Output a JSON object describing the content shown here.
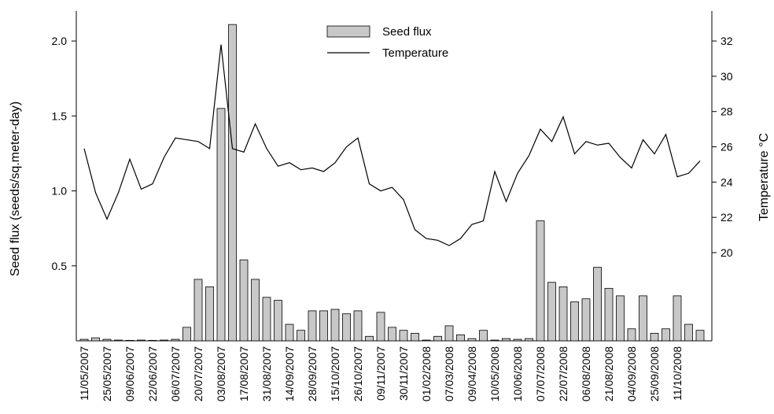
{
  "chart_data": {
    "type": "bar-line",
    "y_label": "Seed flux (seeds/sq.meter-day)",
    "y2_label": "Temperature °C",
    "categories": [
      "11/05/2007",
      null,
      "25/05/2007",
      null,
      "09/06/2007",
      null,
      "22/06/2007",
      null,
      "06/07/2007",
      null,
      "20/07/2007",
      null,
      "03/08/2007",
      null,
      "17/08/2007",
      null,
      "31/08/2007",
      null,
      "14/09/2007",
      null,
      "28/09/2007",
      null,
      "15/10/2007",
      null,
      "26/10/2007",
      null,
      "09/11/2007",
      null,
      "30/11/2007",
      null,
      "01/02/2008",
      null,
      "07/03/2008",
      null,
      "09/04/2008",
      null,
      "10/05/2008",
      null,
      "10/06/2008",
      null,
      "07/07/2008",
      null,
      "22/07/2008",
      null,
      "06/08/2008",
      null,
      "21/08/2008",
      null,
      "04/09/2008",
      null,
      "25/09/2008",
      null,
      "11/10/2008",
      null,
      null
    ],
    "series": [
      {
        "name": "Seed flux",
        "color": "#c8c8c8",
        "type": "bar",
        "values": [
          0.01,
          0.02,
          0.01,
          0.005,
          0.003,
          0.005,
          0.003,
          0.005,
          0.01,
          0.09,
          0.41,
          0.36,
          1.55,
          2.11,
          0.54,
          0.41,
          0.29,
          0.27,
          0.11,
          0.07,
          0.2,
          0.2,
          0.21,
          0.18,
          0.2,
          0.03,
          0.19,
          0.09,
          0.07,
          0.05,
          0.005,
          0.03,
          0.1,
          0.04,
          0.015,
          0.07,
          0.005,
          0.015,
          0.01,
          0.015,
          0.8,
          0.39,
          0.36,
          0.26,
          0.28,
          0.49,
          0.35,
          0.3,
          0.08,
          0.3,
          0.05,
          0.08,
          0.3,
          0.11,
          0.07
        ]
      },
      {
        "name": "Temperature",
        "color": "#000000",
        "type": "line",
        "axis": "y2",
        "values": [
          25.9,
          23.4,
          21.9,
          23.4,
          25.3,
          23.6,
          23.9,
          25.4,
          26.5,
          26.4,
          26.3,
          25.9,
          31.8,
          25.9,
          25.7,
          27.3,
          25.9,
          24.9,
          25.1,
          24.7,
          24.8,
          24.6,
          25.1,
          26.0,
          26.5,
          23.9,
          23.5,
          23.7,
          23.0,
          21.3,
          20.8,
          20.7,
          20.4,
          20.8,
          21.6,
          21.8,
          24.6,
          22.9,
          24.5,
          25.5,
          27.0,
          26.3,
          27.7,
          25.6,
          26.3,
          26.1,
          26.2,
          25.4,
          24.8,
          26.4,
          25.6,
          26.7,
          24.3,
          24.5,
          25.2
        ]
      }
    ],
    "ylim": [
      0,
      2.2
    ],
    "yticks": [
      0.5,
      {
        "value": 1,
        "label": "1.0"
      },
      1.5,
      {
        "value": 2,
        "label": "2.0"
      }
    ],
    "y2lim": [
      15,
      33.7
    ],
    "y2ticks": [
      20,
      22,
      24,
      26,
      28,
      30,
      32
    ]
  }
}
